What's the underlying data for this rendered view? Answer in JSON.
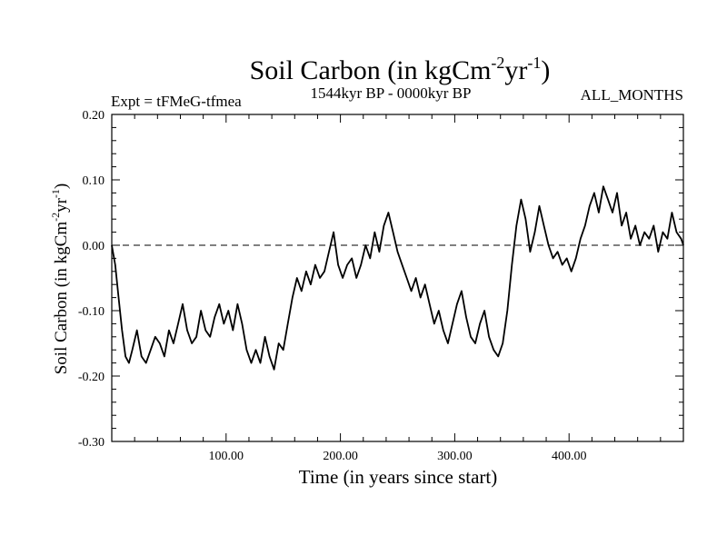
{
  "chart_data": {
    "type": "line",
    "title": "Soil Carbon (in kgCm",
    "title_sup1": "-2",
    "title_mid": "yr",
    "title_sup2": "-1",
    "title_end": ")",
    "subtitle_left": "Expt = tFMeG-tfmea",
    "subtitle_center": "1544kyr BP - 0000kyr BP",
    "subtitle_right": "ALL_MONTHS",
    "xlabel": "Time (in years since start)",
    "ylabel": "Soil Carbon (in kgCm",
    "ylabel_sup1": "-2",
    "ylabel_mid": "yr",
    "ylabel_sup2": "-1",
    "ylabel_end": ")",
    "xlim": [
      0,
      500
    ],
    "ylim": [
      -0.3,
      0.2
    ],
    "x_ticks": [
      {
        "value": 100,
        "label": "100.00"
      },
      {
        "value": 200,
        "label": "200.00"
      },
      {
        "value": 300,
        "label": "300.00"
      },
      {
        "value": 400,
        "label": "400.00"
      }
    ],
    "y_ticks": [
      {
        "value": 0.2,
        "label": "0.20"
      },
      {
        "value": 0.1,
        "label": "0.10"
      },
      {
        "value": 0.0,
        "label": "0.00"
      },
      {
        "value": -0.1,
        "label": "-0.10"
      },
      {
        "value": -0.2,
        "label": "-0.20"
      },
      {
        "value": -0.3,
        "label": "-0.30"
      }
    ],
    "reference_line": {
      "y": 0.0,
      "style": "dashed"
    },
    "series": [
      {
        "name": "Soil Carbon",
        "color": "#000000",
        "x": [
          0,
          3,
          6,
          9,
          12,
          15,
          18,
          22,
          26,
          30,
          34,
          38,
          42,
          46,
          50,
          54,
          58,
          62,
          66,
          70,
          74,
          78,
          82,
          86,
          90,
          94,
          98,
          102,
          106,
          110,
          114,
          118,
          122,
          126,
          130,
          134,
          138,
          142,
          146,
          150,
          154,
          158,
          162,
          166,
          170,
          174,
          178,
          182,
          186,
          190,
          194,
          198,
          202,
          206,
          210,
          214,
          218,
          222,
          226,
          230,
          234,
          238,
          242,
          246,
          250,
          254,
          258,
          262,
          266,
          270,
          274,
          278,
          282,
          286,
          290,
          294,
          298,
          302,
          306,
          310,
          314,
          318,
          322,
          326,
          330,
          334,
          338,
          342,
          346,
          350,
          354,
          358,
          362,
          366,
          370,
          374,
          378,
          382,
          386,
          390,
          394,
          398,
          402,
          406,
          410,
          414,
          418,
          422,
          426,
          430,
          434,
          438,
          442,
          446,
          450,
          454,
          458,
          462,
          466,
          470,
          474,
          478,
          482,
          486,
          490,
          494,
          498,
          500
        ],
        "y": [
          0.0,
          -0.03,
          -0.08,
          -0.13,
          -0.17,
          -0.18,
          -0.16,
          -0.13,
          -0.17,
          -0.18,
          -0.16,
          -0.14,
          -0.15,
          -0.17,
          -0.13,
          -0.15,
          -0.12,
          -0.09,
          -0.13,
          -0.15,
          -0.14,
          -0.1,
          -0.13,
          -0.14,
          -0.11,
          -0.09,
          -0.12,
          -0.1,
          -0.13,
          -0.09,
          -0.12,
          -0.16,
          -0.18,
          -0.16,
          -0.18,
          -0.14,
          -0.17,
          -0.19,
          -0.15,
          -0.16,
          -0.12,
          -0.08,
          -0.05,
          -0.07,
          -0.04,
          -0.06,
          -0.03,
          -0.05,
          -0.04,
          -0.01,
          0.02,
          -0.03,
          -0.05,
          -0.03,
          -0.02,
          -0.05,
          -0.03,
          0.0,
          -0.02,
          0.02,
          -0.01,
          0.03,
          0.05,
          0.02,
          -0.01,
          -0.03,
          -0.05,
          -0.07,
          -0.05,
          -0.08,
          -0.06,
          -0.09,
          -0.12,
          -0.1,
          -0.13,
          -0.15,
          -0.12,
          -0.09,
          -0.07,
          -0.11,
          -0.14,
          -0.15,
          -0.12,
          -0.1,
          -0.14,
          -0.16,
          -0.17,
          -0.15,
          -0.1,
          -0.03,
          0.03,
          0.07,
          0.04,
          -0.01,
          0.02,
          0.06,
          0.03,
          0.0,
          -0.02,
          -0.01,
          -0.03,
          -0.02,
          -0.04,
          -0.02,
          0.01,
          0.03,
          0.06,
          0.08,
          0.05,
          0.09,
          0.07,
          0.05,
          0.08,
          0.03,
          0.05,
          0.01,
          0.03,
          0.0,
          0.02,
          0.01,
          0.03,
          -0.01,
          0.02,
          0.01,
          0.05,
          0.02,
          0.01,
          0.0
        ]
      }
    ]
  }
}
